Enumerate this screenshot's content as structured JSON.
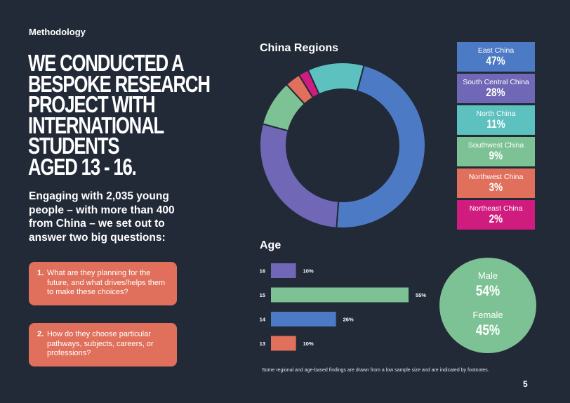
{
  "section_label": "Methodology",
  "headline": [
    "WE CONDUCTED A",
    "BESPOKE RESEARCH",
    "PROJECT WITH",
    "INTERNATIONAL",
    "STUDENTS",
    "AGED 13 - 16."
  ],
  "intro": "Engaging with 2,035 young people – with more than 400 from China – we set out to answer two big questions:",
  "questions": [
    {
      "num": "1.",
      "text": "What are they planning for the future, and what drives/helps them to make these choices?"
    },
    {
      "num": "2.",
      "text": "How do they choose particular pathways, subjects, careers, or professions?"
    }
  ],
  "gender": {
    "male_label": "Male",
    "male_value": "54%",
    "female_label": "Female",
    "female_value": "45%",
    "color": "#7cc294"
  },
  "footnote": "Some regional and age-based findings are drawn from a low sample size and are indicated by footnotes.",
  "page_number": "5",
  "colors": {
    "background": "#222a38",
    "question_box": "#e0705c"
  },
  "chart_data": [
    {
      "type": "pie",
      "title": "China Regions",
      "donut": true,
      "slices": [
        {
          "label": "East China",
          "value": 47,
          "display": "47%",
          "color": "#4c7ac4"
        },
        {
          "label": "South Central China",
          "value": 28,
          "display": "28%",
          "color": "#7067b6"
        },
        {
          "label": "North China",
          "value": 11,
          "display": "11%",
          "color": "#5cc1bf"
        },
        {
          "label": "Southwest China",
          "value": 9,
          "display": "9%",
          "color": "#7cc294"
        },
        {
          "label": "Northwest China",
          "value": 3,
          "display": "3%",
          "color": "#e0705c"
        },
        {
          "label": "Northeast China",
          "value": 2,
          "display": "2%",
          "color": "#d11c7f"
        }
      ],
      "legend": "right"
    },
    {
      "type": "bar",
      "orientation": "horizontal",
      "title": "Age",
      "categories": [
        "16",
        "15",
        "14",
        "13"
      ],
      "values": [
        10,
        55,
        26,
        10
      ],
      "labels": [
        "10%",
        "55%",
        "26%",
        "10%"
      ],
      "colors": [
        "#7067b6",
        "#7cc294",
        "#4c7ac4",
        "#e0705c"
      ],
      "xlim": [
        0,
        55
      ]
    }
  ]
}
